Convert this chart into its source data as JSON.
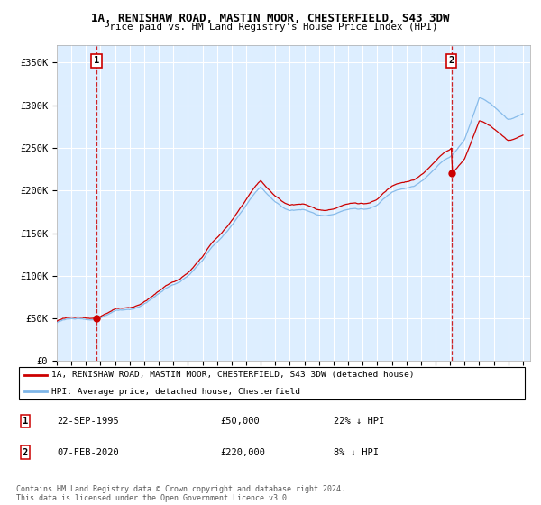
{
  "title_line1": "1A, RENISHAW ROAD, MASTIN MOOR, CHESTERFIELD, S43 3DW",
  "title_line2": "Price paid vs. HM Land Registry's House Price Index (HPI)",
  "ylabel_values": [
    "£0",
    "£50K",
    "£100K",
    "£150K",
    "£200K",
    "£250K",
    "£300K",
    "£350K"
  ],
  "y_ticks": [
    0,
    50000,
    100000,
    150000,
    200000,
    250000,
    300000,
    350000
  ],
  "ylim": [
    0,
    370000
  ],
  "x_start_year": 1993,
  "x_end_year": 2025,
  "hpi_color": "#7eb6e8",
  "price_color": "#cc0000",
  "sale1_date": 1995.72,
  "sale1_price": 50000,
  "sale2_date": 2020.09,
  "sale2_price": 220000,
  "legend_line1": "1A, RENISHAW ROAD, MASTIN MOOR, CHESTERFIELD, S43 3DW (detached house)",
  "legend_line2": "HPI: Average price, detached house, Chesterfield",
  "table_row1": [
    "1",
    "22-SEP-1995",
    "£50,000",
    "22% ↓ HPI"
  ],
  "table_row2": [
    "2",
    "07-FEB-2020",
    "£220,000",
    "8% ↓ HPI"
  ],
  "footer": "Contains HM Land Registry data © Crown copyright and database right 2024.\nThis data is licensed under the Open Government Licence v3.0.",
  "bg_plot_color": "#ddeeff",
  "background_color": "#ffffff",
  "annotation_box_color": "#cc0000"
}
